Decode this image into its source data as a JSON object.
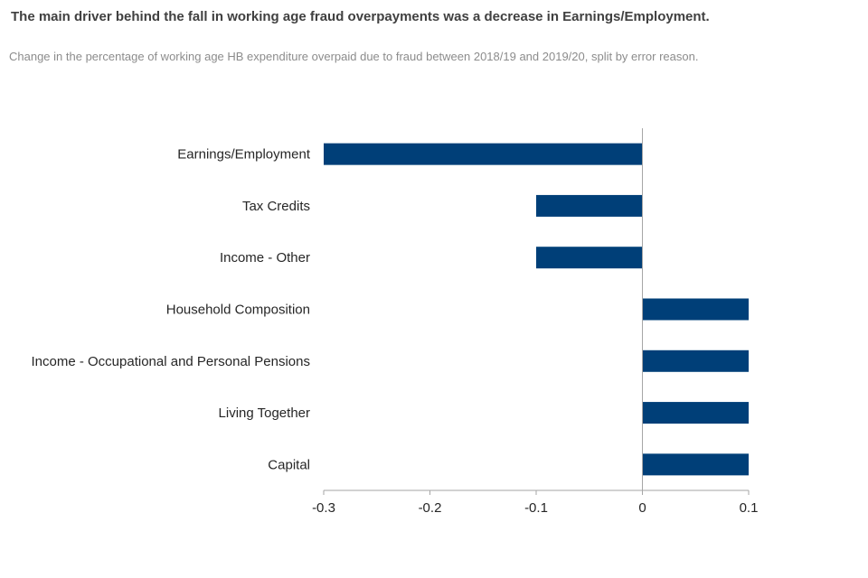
{
  "title": "The main driver behind the fall in working age fraud overpayments was a decrease in Earnings/Employment.",
  "subtitle": "Change in the percentage of working age HB expenditure overpaid due to fraud between 2018/19 and 2019/20, split by error reason.",
  "chart_data": {
    "type": "bar",
    "orientation": "horizontal",
    "categories": [
      "Earnings/Employment",
      "Tax Credits",
      "Income - Other",
      "Household Composition",
      "Income - Occupational and Personal Pensions",
      "Living Together",
      "Capital"
    ],
    "values": [
      -0.3,
      -0.1,
      -0.1,
      0.1,
      0.1,
      0.1,
      0.1
    ],
    "xlim": [
      -0.3,
      0.1
    ],
    "xticks": [
      -0.3,
      -0.2,
      -0.1,
      0,
      0.1
    ],
    "xtick_labels": [
      "-0.3",
      "-0.2",
      "-0.1",
      "0",
      "0.1"
    ],
    "bar_color": "#003f78",
    "axis_color": "#a6a6a6",
    "grid": false,
    "legend": "none"
  }
}
